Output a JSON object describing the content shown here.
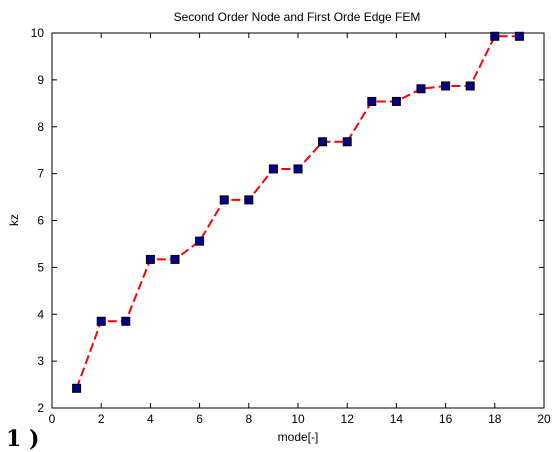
{
  "chart_data": {
    "type": "line",
    "title": "Second Order Node and First Orde Edge FEM",
    "xlabel": "mode[-]",
    "ylabel": "kz",
    "xlim": [
      0,
      20
    ],
    "ylim": [
      2,
      10
    ],
    "xticks": [
      "0",
      "2",
      "4",
      "6",
      "8",
      "10",
      "12",
      "14",
      "16",
      "18",
      "20"
    ],
    "yticks": [
      "2",
      "3",
      "4",
      "5",
      "6",
      "7",
      "8",
      "9",
      "10"
    ],
    "grid": false,
    "series": [
      {
        "x": [
          1,
          2,
          3,
          4,
          5,
          6,
          7,
          8,
          9,
          10,
          11,
          12,
          13,
          14,
          15,
          16,
          17,
          18,
          19
        ],
        "y": [
          2.42,
          3.85,
          3.85,
          5.17,
          5.17,
          5.56,
          6.44,
          6.44,
          7.1,
          7.1,
          7.68,
          7.68,
          8.54,
          8.54,
          8.81,
          8.87,
          8.87,
          9.93,
          9.93
        ],
        "line_color": "#ff0000",
        "marker_color": "#00008b",
        "line_style": "dashed",
        "marker": "square"
      }
    ]
  },
  "footer": {
    "mark": "1 )"
  }
}
